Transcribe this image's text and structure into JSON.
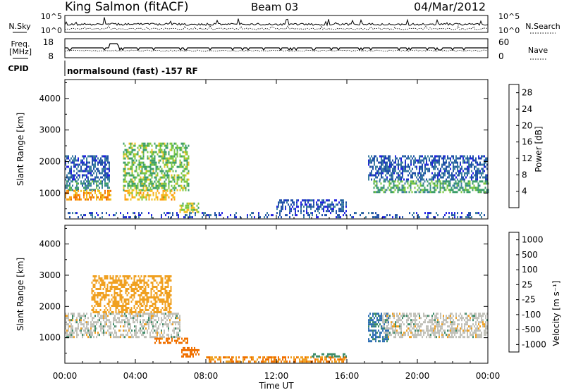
{
  "header": {
    "station": "King Salmon (fitACF)",
    "beam": "Beam 03",
    "date": "04/Mar/2012"
  },
  "noise_panel": {
    "left_label": "N.Sky",
    "right_label": "N.Search",
    "left_ticks": [
      "10^5",
      "10^0"
    ],
    "right_ticks": [
      "10^5",
      "10^0"
    ]
  },
  "freq_panel": {
    "left_label_1": "Freq.",
    "left_label_2": "[MHz]",
    "right_label": "Nave",
    "left_ticks": [
      "18",
      "8"
    ],
    "right_ticks": [
      "60",
      "0"
    ]
  },
  "cpid": {
    "label": "CPID",
    "text": "normalsound (fast) -157 RF"
  },
  "range_axis": {
    "label": "Slant Range [km]",
    "ticks": [
      "4000",
      "3000",
      "2000",
      "1000"
    ]
  },
  "time_axis": {
    "label": "Time UT",
    "ticks": [
      "00:00",
      "04:00",
      "08:00",
      "12:00",
      "16:00",
      "20:00",
      "00:00"
    ]
  },
  "power_colorbar": {
    "label": "Power [dB]",
    "ticks": [
      "28",
      "24",
      "20",
      "16",
      "12",
      "8",
      "4"
    ]
  },
  "velocity_colorbar": {
    "label": "Velocity [m s⁻¹]",
    "ticks": [
      "1000",
      "500",
      "100",
      "25",
      "-25",
      "-100",
      "-500",
      "-1000"
    ]
  },
  "colors": {
    "power": [
      "#2020e0",
      "#2050a8",
      "#3c7ea0",
      "#3c9e6a",
      "#7cc840",
      "#f0c020",
      "#ffa010",
      "#f07000",
      "#e82010"
    ],
    "velocity": [
      "#1a3bd8",
      "#2f6fb4",
      "#3d8c68",
      "#5cc030",
      "#c0c0b8",
      "#f0a020",
      "#f07000",
      "#e83010"
    ]
  },
  "chart_data": [
    {
      "type": "heatmap",
      "title": "Power [dB]",
      "xlabel": "Time UT",
      "ylabel": "Slant Range [km]",
      "xlim": [
        0,
        24
      ],
      "ylim": [
        180,
        4600
      ],
      "clim": [
        0,
        30
      ],
      "x_ticks": [
        "00:00",
        "04:00",
        "08:00",
        "12:00",
        "16:00",
        "20:00",
        "00:00"
      ],
      "y_ticks": [
        1000,
        2000,
        3000,
        4000
      ],
      "regions": [
        {
          "t0": 0.0,
          "t1": 2.5,
          "r0": 1400,
          "r1": 2200,
          "value": 6
        },
        {
          "t0": 0.0,
          "t1": 2.5,
          "r0": 1100,
          "r1": 1400,
          "value": 10
        },
        {
          "t0": 0.0,
          "t1": 2.6,
          "r0": 800,
          "r1": 1100,
          "value": 22
        },
        {
          "t0": 3.3,
          "t1": 7.0,
          "r0": 1100,
          "r1": 2600,
          "value": 14
        },
        {
          "t0": 3.3,
          "t1": 6.2,
          "r0": 800,
          "r1": 1100,
          "value": 20
        },
        {
          "t0": 6.5,
          "t1": 7.6,
          "r0": 400,
          "r1": 700,
          "value": 16
        },
        {
          "t0": 0.0,
          "t1": 24.0,
          "r0": 200,
          "r1": 400,
          "value": 5
        },
        {
          "t0": 12.0,
          "t1": 16.0,
          "r0": 400,
          "r1": 800,
          "value": 5
        },
        {
          "t0": 17.2,
          "t1": 24.0,
          "r0": 1400,
          "r1": 2200,
          "value": 6
        },
        {
          "t0": 17.5,
          "t1": 24.0,
          "r0": 1000,
          "r1": 1400,
          "value": 12
        }
      ]
    },
    {
      "type": "heatmap",
      "title": "Velocity [m s⁻¹]",
      "xlabel": "Time UT",
      "ylabel": "Slant Range [km]",
      "xlim": [
        0,
        24
      ],
      "ylim": [
        180,
        4600
      ],
      "clim": [
        -1000,
        1000
      ],
      "x_ticks": [
        "00:00",
        "04:00",
        "08:00",
        "12:00",
        "16:00",
        "20:00",
        "00:00"
      ],
      "y_ticks": [
        1000,
        2000,
        3000,
        4000
      ],
      "regions": [
        {
          "t0": 0.0,
          "t1": 6.5,
          "r0": 1000,
          "r1": 1800,
          "value": 0
        },
        {
          "t0": 1.5,
          "t1": 6.0,
          "r0": 1800,
          "r1": 3000,
          "value": -60
        },
        {
          "t0": 5.0,
          "t1": 7.0,
          "r0": 800,
          "r1": 1000,
          "value": -150
        },
        {
          "t0": 6.6,
          "t1": 7.6,
          "r0": 400,
          "r1": 700,
          "value": -300
        },
        {
          "t0": 8.0,
          "t1": 16.0,
          "r0": 200,
          "r1": 400,
          "value": -100
        },
        {
          "t0": 14.0,
          "t1": 16.0,
          "r0": 400,
          "r1": 500,
          "value": 60
        },
        {
          "t0": 17.2,
          "t1": 18.4,
          "r0": 900,
          "r1": 1800,
          "value": 120
        },
        {
          "t0": 18.0,
          "t1": 24.0,
          "r0": 1000,
          "r1": 1800,
          "value": 0
        }
      ]
    }
  ]
}
